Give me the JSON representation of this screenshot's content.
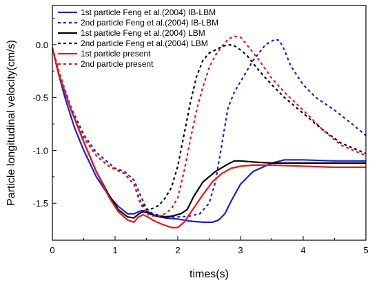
{
  "chart_data": {
    "type": "line",
    "xlabel": "times(s)",
    "ylabel": "Particle longitudinal velocity(cm/s)",
    "xlim": [
      0,
      5
    ],
    "ylim": [
      -1.85,
      0.37
    ],
    "xticks": [
      0,
      1,
      2,
      3,
      4,
      5
    ],
    "xtick_labels": [
      "0",
      "1",
      "2",
      "3",
      "4",
      "5"
    ],
    "yticks": [
      0.0,
      -0.5,
      -1.0,
      -1.5
    ],
    "ytick_labels": [
      "0.0",
      "-0.5",
      "-1.0",
      "-1.5"
    ],
    "grid": false,
    "legend_position": "top-left",
    "series": [
      {
        "name": "1st particle Feng et al.(2004) IB-LBM",
        "color": "#1c1cd8",
        "dash": "solid",
        "x": [
          0,
          0.1,
          0.2,
          0.35,
          0.5,
          0.7,
          0.9,
          1.05,
          1.2,
          1.3,
          1.42,
          1.52,
          1.65,
          1.8,
          2.0,
          2.2,
          2.4,
          2.55,
          2.65,
          2.75,
          2.85,
          3.0,
          3.2,
          3.5,
          3.7,
          4.0,
          4.5,
          5.0
        ],
        "y": [
          -0.03,
          -0.28,
          -0.5,
          -0.78,
          -1.0,
          -1.25,
          -1.43,
          -1.53,
          -1.6,
          -1.6,
          -1.57,
          -1.58,
          -1.62,
          -1.64,
          -1.65,
          -1.67,
          -1.68,
          -1.68,
          -1.66,
          -1.6,
          -1.48,
          -1.32,
          -1.2,
          -1.12,
          -1.09,
          -1.09,
          -1.1,
          -1.1
        ]
      },
      {
        "name": "2nd particle Feng et al.(2004) IB-LBM",
        "color": "#1c1cd8",
        "dash": "dash",
        "x": [
          0,
          0.1,
          0.3,
          0.5,
          0.7,
          0.9,
          1.0,
          1.15,
          1.3,
          1.4,
          1.5,
          1.6,
          1.75,
          1.9,
          2.05,
          2.2,
          2.35,
          2.5,
          2.6,
          2.7,
          2.8,
          2.9,
          3.0,
          3.2,
          3.4,
          3.55,
          3.62,
          3.7,
          3.8,
          4.0,
          4.2,
          4.5,
          4.8,
          5.0
        ],
        "y": [
          -0.03,
          -0.25,
          -0.6,
          -0.85,
          -1.02,
          -1.12,
          -1.17,
          -1.2,
          -1.28,
          -1.42,
          -1.55,
          -1.6,
          -1.62,
          -1.63,
          -1.63,
          -1.62,
          -1.6,
          -1.5,
          -1.3,
          -0.95,
          -0.6,
          -0.45,
          -0.35,
          -0.15,
          0.0,
          0.05,
          0.04,
          -0.05,
          -0.2,
          -0.38,
          -0.5,
          -0.62,
          -0.76,
          -0.86
        ]
      },
      {
        "name": "1st particle Feng et al.(2004) LBM",
        "color": "#000000",
        "dash": "solid",
        "x": [
          0,
          0.1,
          0.3,
          0.5,
          0.7,
          0.9,
          1.05,
          1.2,
          1.3,
          1.38,
          1.45,
          1.52,
          1.6,
          1.72,
          1.82,
          1.92,
          2.05,
          2.15,
          2.25,
          2.4,
          2.6,
          2.8,
          2.9,
          3.0,
          3.2,
          3.5,
          4.0,
          4.5,
          5.0
        ],
        "y": [
          -0.03,
          -0.28,
          -0.62,
          -0.92,
          -1.2,
          -1.42,
          -1.56,
          -1.63,
          -1.64,
          -1.6,
          -1.58,
          -1.59,
          -1.61,
          -1.63,
          -1.63,
          -1.62,
          -1.6,
          -1.56,
          -1.44,
          -1.3,
          -1.2,
          -1.13,
          -1.1,
          -1.1,
          -1.11,
          -1.12,
          -1.12,
          -1.12,
          -1.12
        ]
      },
      {
        "name": "2nd particle Feng et al.(2004) LBM",
        "color": "#000000",
        "dash": "dash",
        "x": [
          0,
          0.1,
          0.3,
          0.5,
          0.7,
          0.9,
          1.0,
          1.15,
          1.3,
          1.4,
          1.5,
          1.6,
          1.7,
          1.8,
          1.9,
          2.0,
          2.1,
          2.2,
          2.3,
          2.4,
          2.5,
          2.6,
          2.7,
          2.8,
          2.9,
          3.0,
          3.1,
          3.3,
          3.5,
          3.7,
          4.0,
          4.3,
          4.6,
          5.0
        ],
        "y": [
          -0.03,
          -0.25,
          -0.62,
          -0.88,
          -1.05,
          -1.15,
          -1.18,
          -1.22,
          -1.32,
          -1.48,
          -1.56,
          -1.55,
          -1.52,
          -1.45,
          -1.35,
          -1.15,
          -0.85,
          -0.55,
          -0.3,
          -0.15,
          -0.08,
          -0.05,
          -0.02,
          0.0,
          -0.01,
          -0.05,
          -0.1,
          -0.25,
          -0.38,
          -0.5,
          -0.65,
          -0.8,
          -0.93,
          -1.03
        ]
      },
      {
        "name": "1st particle present",
        "color": "#e01b1b",
        "dash": "solid",
        "x": [
          0,
          0.1,
          0.3,
          0.5,
          0.7,
          0.9,
          1.05,
          1.2,
          1.3,
          1.37,
          1.45,
          1.52,
          1.6,
          1.75,
          1.9,
          2.0,
          2.1,
          2.25,
          2.4,
          2.55,
          2.7,
          2.85,
          3.0,
          3.2,
          3.5,
          4.0,
          4.5,
          5.0
        ],
        "y": [
          -0.03,
          -0.28,
          -0.62,
          -0.92,
          -1.2,
          -1.44,
          -1.58,
          -1.66,
          -1.68,
          -1.63,
          -1.61,
          -1.63,
          -1.66,
          -1.7,
          -1.73,
          -1.73,
          -1.68,
          -1.55,
          -1.42,
          -1.3,
          -1.22,
          -1.17,
          -1.15,
          -1.14,
          -1.14,
          -1.15,
          -1.16,
          -1.16
        ]
      },
      {
        "name": "2nd particle present",
        "color": "#e01b1b",
        "dash": "dash",
        "x": [
          0,
          0.1,
          0.3,
          0.5,
          0.7,
          0.9,
          1.0,
          1.15,
          1.3,
          1.4,
          1.5,
          1.6,
          1.7,
          1.8,
          1.9,
          2.0,
          2.1,
          2.2,
          2.3,
          2.4,
          2.5,
          2.6,
          2.7,
          2.8,
          2.9,
          3.0,
          3.1,
          3.3,
          3.5,
          3.7,
          4.0,
          4.3,
          4.6,
          5.0
        ],
        "y": [
          -0.03,
          -0.25,
          -0.62,
          -0.88,
          -1.05,
          -1.15,
          -1.18,
          -1.22,
          -1.32,
          -1.5,
          -1.6,
          -1.62,
          -1.62,
          -1.6,
          -1.55,
          -1.45,
          -1.2,
          -0.9,
          -0.62,
          -0.4,
          -0.22,
          -0.1,
          -0.02,
          0.05,
          0.08,
          0.07,
          0.0,
          -0.15,
          -0.32,
          -0.45,
          -0.62,
          -0.8,
          -0.95,
          -1.05
        ]
      }
    ]
  }
}
